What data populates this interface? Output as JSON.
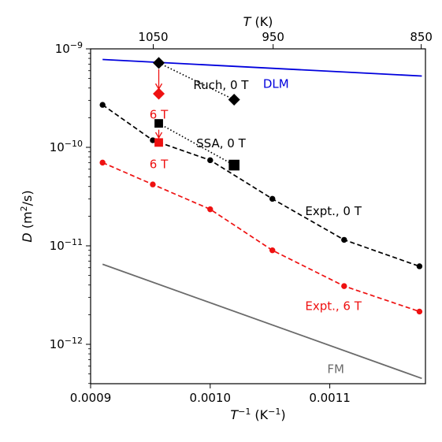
{
  "chart_data": {
    "type": "line",
    "xlabel_main": "T",
    "xlabel_sup": "−1",
    "xlabel_unit": " (K",
    "xlabel_unit_sup": "−1",
    "xlabel_close": ")",
    "ylabel_main": "D",
    "ylabel_unit": " (m",
    "ylabel_unit_sup": "2",
    "ylabel_close": "/s)",
    "top_xlabel_main": "T",
    "top_xlabel_unit": " (K)",
    "xlim": [
      0.0009,
      0.00118
    ],
    "ylim_log10": [
      -12.4,
      -9
    ],
    "log_scale_y": true,
    "grid": false,
    "bottom_ticks": [
      {
        "value": 0.0009,
        "label": "0.0009"
      },
      {
        "value": 0.001,
        "label": "0.0010"
      },
      {
        "value": 0.0011,
        "label": "0.0011"
      }
    ],
    "top_ticks": [
      {
        "temperature": 1050,
        "label": "1050"
      },
      {
        "temperature": 950,
        "label": "950"
      },
      {
        "temperature": 850,
        "label": "850"
      }
    ],
    "y_ticks": [
      {
        "exp": -9,
        "base": "10",
        "sup": "−9"
      },
      {
        "exp": -10,
        "base": "10",
        "sup": "−10"
      },
      {
        "exp": -11,
        "base": "10",
        "sup": "−11"
      },
      {
        "exp": -12,
        "base": "10",
        "sup": "−12"
      }
    ],
    "series": [
      {
        "name": "DLM",
        "color": "#0000dd",
        "style": "solid",
        "marker": "none",
        "points": [
          [
            0.00091,
            7.8e-10
          ],
          [
            0.001177,
            5.3e-10
          ]
        ]
      },
      {
        "name": "FM",
        "color": "#6b6b6b",
        "style": "solid",
        "marker": "none",
        "points": [
          [
            0.00091,
            6.5e-12
          ],
          [
            0.001177,
            4.5e-13
          ]
        ]
      },
      {
        "name": "Expt., 0 T",
        "color": "#000000",
        "style": "dashed",
        "marker": "circle",
        "points": [
          [
            0.00091,
            2.7e-10
          ],
          [
            0.000952,
            1.18e-10
          ],
          [
            0.001,
            7.4e-11
          ],
          [
            0.001052,
            3e-11
          ],
          [
            0.001112,
            1.15e-11
          ],
          [
            0.001175,
            6.2e-12
          ]
        ]
      },
      {
        "name": "Expt., 6 T",
        "color": "#ee1111",
        "style": "dashed",
        "marker": "circle",
        "points": [
          [
            0.00091,
            7e-11
          ],
          [
            0.000952,
            4.2e-11
          ],
          [
            0.001,
            2.35e-11
          ],
          [
            0.001052,
            9e-12
          ],
          [
            0.001112,
            3.9e-12
          ],
          [
            0.001175,
            2.15e-12
          ]
        ]
      },
      {
        "name": "Ruch, 0 T",
        "color": "#000000",
        "style": "dotted",
        "marker": "diamond",
        "points": [
          [
            0.000957,
            7.2e-10
          ],
          [
            0.00102,
            3.05e-10
          ]
        ]
      },
      {
        "name": "SSA, 0 T",
        "color": "#000000",
        "style": "dotted",
        "marker": "square",
        "points": [
          [
            0.000957,
            1.75e-10
          ],
          [
            0.00102,
            6.6e-11
          ]
        ]
      },
      {
        "name": "Ruch, 6 T",
        "color": "#ee1111",
        "style": "none",
        "marker": "diamond",
        "points": [
          [
            0.000957,
            3.5e-10
          ]
        ]
      },
      {
        "name": "SSA, 6 T",
        "color": "#ee1111",
        "style": "none",
        "marker": "square",
        "points": [
          [
            0.000957,
            1.12e-10
          ]
        ]
      }
    ],
    "arrows": [
      {
        "x": 0.000957,
        "from": 7.2e-10,
        "to": 3.9e-10,
        "color": "#ee1111"
      },
      {
        "x": 0.000957,
        "from": 1.75e-10,
        "to": 1.25e-10,
        "color": "#ee1111"
      }
    ],
    "annotations": [
      {
        "text": "DLM",
        "color": "#0000dd",
        "x": 0.001055,
        "y": 4.4e-10
      },
      {
        "text": "Ruch, 0 T",
        "color": "#000000",
        "x": 0.001009,
        "y": 4.3e-10
      },
      {
        "text": "6 T",
        "color": "#ee1111",
        "x": 0.000957,
        "y": 2.15e-10
      },
      {
        "text": "SSA, 0 T",
        "color": "#000000",
        "x": 0.001009,
        "y": 1.1e-10
      },
      {
        "text": "6 T",
        "color": "#ee1111",
        "x": 0.000957,
        "y": 6.7e-11
      },
      {
        "text": "Expt., 0 T",
        "color": "#000000",
        "x": 0.001103,
        "y": 2.25e-11
      },
      {
        "text": "Expt., 6 T",
        "color": "#ee1111",
        "x": 0.001103,
        "y": 2.45e-12
      },
      {
        "text": "FM",
        "color": "#6b6b6b",
        "x": 0.001105,
        "y": 5.6e-13
      }
    ]
  }
}
